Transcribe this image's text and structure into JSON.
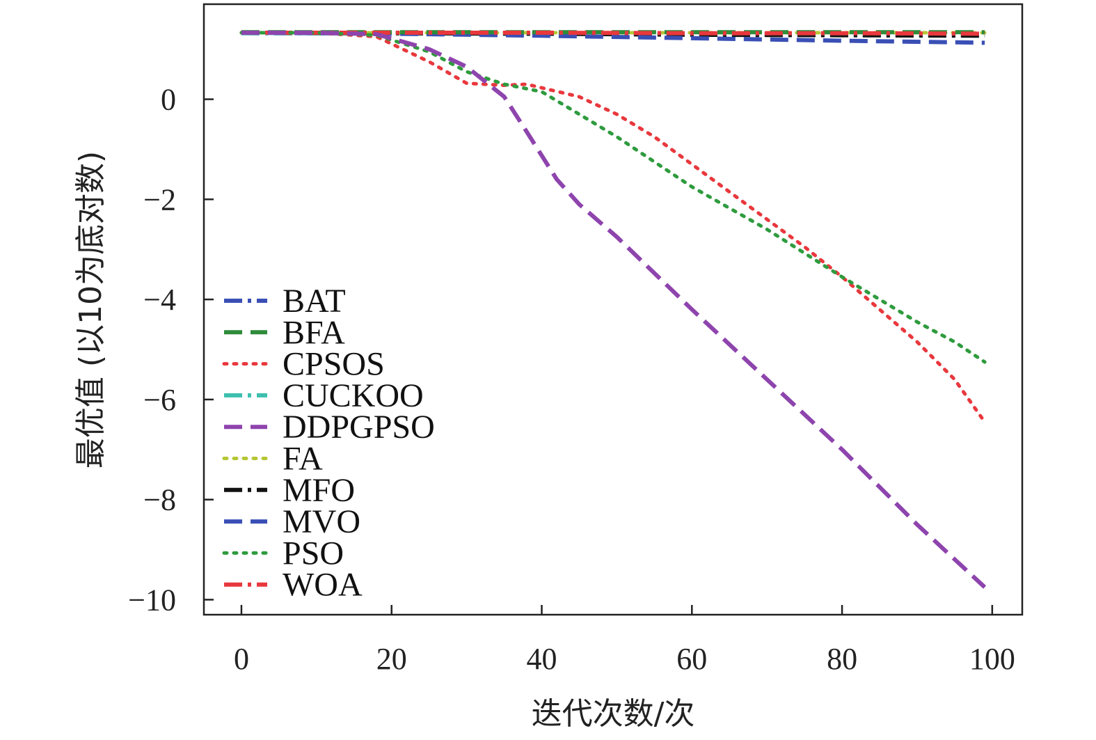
{
  "chart_data": {
    "type": "line",
    "xlabel": "迭代次数/次",
    "ylabel": "最优值 (以10为底对数)",
    "xlim": [
      -5,
      104
    ],
    "ylim": [
      -10.3,
      1.9
    ],
    "xticks": [
      0,
      20,
      40,
      60,
      80,
      100
    ],
    "yticks": [
      0,
      -2,
      -4,
      -6,
      -8,
      -10
    ],
    "xtick_labels": [
      "0",
      "20",
      "40",
      "60",
      "80",
      "100"
    ],
    "ytick_labels": [
      "0",
      "−2",
      "−4",
      "−6",
      "−8",
      "−10"
    ],
    "legend_position": "lower-left",
    "grid": false,
    "series": [
      {
        "name": "BAT",
        "color": "#3a4fb5",
        "style": "dashdot",
        "x": [
          0,
          20,
          40,
          60,
          80,
          99
        ],
        "y": [
          1.33,
          1.33,
          1.32,
          1.3,
          1.29,
          1.28
        ]
      },
      {
        "name": "BFA",
        "color": "#2e8b3a",
        "style": "dashed",
        "x": [
          0,
          20,
          40,
          60,
          80,
          99
        ],
        "y": [
          1.34,
          1.34,
          1.34,
          1.34,
          1.34,
          1.34
        ]
      },
      {
        "name": "CPSOS",
        "color": "#e8383d",
        "style": "dotted",
        "x": [
          0,
          10,
          18,
          25,
          30,
          35,
          38,
          45,
          50,
          55,
          60,
          65,
          70,
          75,
          80,
          85,
          90,
          95,
          99
        ],
        "y": [
          1.33,
          1.33,
          1.25,
          0.75,
          0.32,
          0.28,
          0.3,
          0.05,
          -0.3,
          -0.75,
          -1.3,
          -1.85,
          -2.4,
          -2.95,
          -3.55,
          -4.2,
          -4.85,
          -5.6,
          -6.45
        ]
      },
      {
        "name": "CUCKOO",
        "color": "#3cbfae",
        "style": "dashdot",
        "x": [
          0,
          20,
          40,
          60,
          80,
          99
        ],
        "y": [
          1.32,
          1.32,
          1.31,
          1.31,
          1.3,
          1.3
        ]
      },
      {
        "name": "DDPGPSO",
        "color": "#8e44ad",
        "style": "dashed",
        "x": [
          0,
          10,
          18,
          25,
          30,
          35,
          38,
          42,
          45,
          50,
          60,
          70,
          80,
          90,
          99
        ],
        "y": [
          1.33,
          1.33,
          1.3,
          1.0,
          0.65,
          0.05,
          -0.65,
          -1.6,
          -2.1,
          -2.75,
          -4.2,
          -5.6,
          -7.0,
          -8.5,
          -9.75
        ]
      },
      {
        "name": "FA",
        "color": "#b5c634",
        "style": "dotted",
        "x": [
          0,
          20,
          40,
          60,
          80,
          99
        ],
        "y": [
          1.33,
          1.33,
          1.33,
          1.33,
          1.33,
          1.33
        ]
      },
      {
        "name": "MFO",
        "color": "#111111",
        "style": "dashdot",
        "x": [
          0,
          20,
          40,
          60,
          80,
          99
        ],
        "y": [
          1.33,
          1.32,
          1.31,
          1.29,
          1.28,
          1.27
        ]
      },
      {
        "name": "MVO",
        "color": "#3a4fb5",
        "style": "dashed",
        "x": [
          0,
          20,
          40,
          60,
          80,
          99
        ],
        "y": [
          1.33,
          1.31,
          1.27,
          1.22,
          1.17,
          1.13
        ]
      },
      {
        "name": "PSO",
        "color": "#2e9b3e",
        "style": "dotted",
        "x": [
          0,
          10,
          18,
          25,
          30,
          35,
          40,
          45,
          50,
          60,
          70,
          80,
          85,
          90,
          95,
          99
        ],
        "y": [
          1.33,
          1.33,
          1.28,
          0.95,
          0.55,
          0.3,
          0.15,
          -0.3,
          -0.75,
          -1.75,
          -2.6,
          -3.55,
          -4.0,
          -4.45,
          -4.85,
          -5.25
        ]
      },
      {
        "name": "WOA",
        "color": "#e8383d",
        "style": "dashdot",
        "x": [
          0,
          20,
          40,
          60,
          80,
          99
        ],
        "y": [
          1.33,
          1.33,
          1.33,
          1.32,
          1.32,
          1.31
        ]
      }
    ]
  }
}
